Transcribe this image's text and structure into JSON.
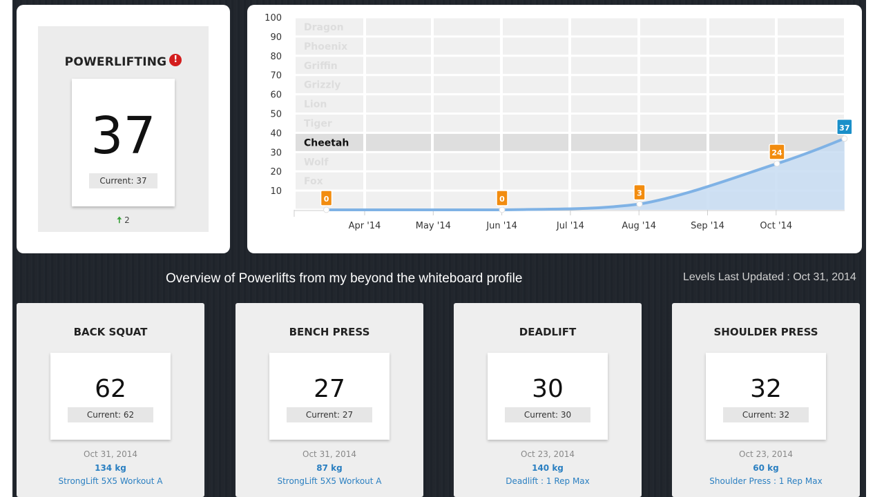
{
  "summary": {
    "title": "POWERLIFTING",
    "alert_glyph": "!",
    "value": "37",
    "current": "Current: 37",
    "change_arrow": "🠅",
    "change": "2"
  },
  "chart_data": {
    "type": "area",
    "x_tick_labels": [
      "Apr '14",
      "May '14",
      "Jun '14",
      "Jul '14",
      "Aug '14",
      "Sep '14",
      "Oct '14"
    ],
    "y_ticks": [
      10,
      20,
      30,
      40,
      50,
      60,
      70,
      80,
      90,
      100
    ],
    "ylim": [
      0,
      100
    ],
    "bands": [
      {
        "label": "Dragon",
        "from": 90,
        "to": 100
      },
      {
        "label": "Phoenix",
        "from": 80,
        "to": 90
      },
      {
        "label": "Griffin",
        "from": 70,
        "to": 80
      },
      {
        "label": "Grizzly",
        "from": 60,
        "to": 70
      },
      {
        "label": "Lion",
        "from": 50,
        "to": 60
      },
      {
        "label": "Tiger",
        "from": 40,
        "to": 50
      },
      {
        "label": "Cheetah",
        "from": 30,
        "to": 40,
        "active": true
      },
      {
        "label": "Wolf",
        "from": 20,
        "to": 30
      },
      {
        "label": "Fox",
        "from": 10,
        "to": 20
      }
    ],
    "series": [
      {
        "points": [
          {
            "x": "2014-03-15",
            "y": 0,
            "label": "0"
          },
          {
            "x": "2014-06-01",
            "y": 0,
            "label": "0"
          },
          {
            "x": "2014-08-01",
            "y": 3,
            "label": "3"
          },
          {
            "x": "2014-10-01",
            "y": 24,
            "label": "24"
          },
          {
            "x": "2014-10-31",
            "y": 37,
            "label": "37"
          }
        ]
      }
    ],
    "colors": {
      "line": "#7fb2e5",
      "fill": "#c7dcf2",
      "marker": "#f28c0f",
      "latest_marker": "#1a8fc9"
    }
  },
  "caption": "Overview of Powerlifts from my beyond the whiteboard profile",
  "levels_updated": "Levels Last Updated : Oct 31, 2014",
  "lifts": [
    {
      "title": "BACK SQUAT",
      "value": "62",
      "current": "Current: 62",
      "date": "Oct 31, 2014",
      "weight": "134 kg",
      "workout": "StrongLift 5X5 Workout A"
    },
    {
      "title": "BENCH PRESS",
      "value": "27",
      "current": "Current: 27",
      "date": "Oct 31, 2014",
      "weight": "87 kg",
      "workout": "StrongLift 5X5 Workout A"
    },
    {
      "title": "DEADLIFT",
      "value": "30",
      "current": "Current: 30",
      "date": "Oct 23, 2014",
      "weight": "140 kg",
      "workout": "Deadlift : 1 Rep Max"
    },
    {
      "title": "SHOULDER PRESS",
      "value": "32",
      "current": "Current: 32",
      "date": "Oct 23, 2014",
      "weight": "60 kg",
      "workout": "Shoulder Press : 1 Rep Max"
    }
  ]
}
